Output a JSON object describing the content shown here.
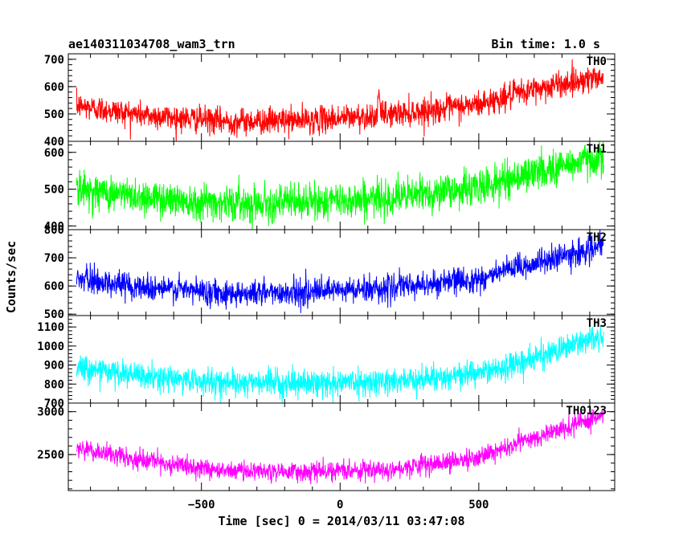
{
  "header": {
    "left_title": "ae140311034708_wam3_trn",
    "right_title": "Bin time: 1.0 s"
  },
  "chart_data": {
    "type": "line",
    "title": "ae140311034708_wam3_trn",
    "subtitle": "Bin time: 1.0 s",
    "xlabel": "Time [sec] 0 = 2014/03/11 03:47:08",
    "ylabel": "Counts/sec",
    "xlim": [
      -980,
      990
    ],
    "x_ticks": [
      -500,
      0,
      500
    ],
    "x_tick_labels": [
      "−500",
      "0",
      "500"
    ],
    "x_start": -950,
    "x_end": 950,
    "x_step": 1,
    "panels": [
      {
        "label": "TH0",
        "color": "#ff0000",
        "ylim": [
          400,
          720
        ],
        "y_ticks": [
          400,
          500,
          600,
          700
        ],
        "trend": [
          [
            -950,
            530
          ],
          [
            -700,
            495
          ],
          [
            -400,
            472
          ],
          [
            -100,
            478
          ],
          [
            130,
            495
          ],
          [
            300,
            510
          ],
          [
            500,
            535
          ],
          [
            700,
            590
          ],
          [
            950,
            640
          ]
        ],
        "noise_sd": 24,
        "spikes": [
          [
            140,
            590
          ]
        ]
      },
      {
        "label": "TH1",
        "color": "#00ff00",
        "ylim": [
          390,
          630
        ],
        "y_ticks": [
          400,
          500,
          600
        ],
        "trend": [
          [
            -950,
            500
          ],
          [
            -700,
            478
          ],
          [
            -400,
            462
          ],
          [
            -100,
            465
          ],
          [
            200,
            478
          ],
          [
            500,
            505
          ],
          [
            700,
            545
          ],
          [
            950,
            590
          ]
        ],
        "noise_sd": 24,
        "spikes": []
      },
      {
        "label": "TH2",
        "color": "#0000ff",
        "ylim": [
          495,
          800
        ],
        "y_ticks": [
          500,
          600,
          700,
          800
        ],
        "trend": [
          [
            -950,
            625
          ],
          [
            -700,
            595
          ],
          [
            -400,
            575
          ],
          [
            -100,
            578
          ],
          [
            200,
            595
          ],
          [
            500,
            625
          ],
          [
            700,
            680
          ],
          [
            950,
            740
          ]
        ],
        "noise_sd": 23,
        "spikes": []
      },
      {
        "label": "TH3",
        "color": "#00ffff",
        "ylim": [
          700,
          1160
        ],
        "y_ticks": [
          700,
          800,
          900,
          1000,
          1100
        ],
        "trend": [
          [
            -950,
            890
          ],
          [
            -700,
            835
          ],
          [
            -400,
            808
          ],
          [
            -100,
            805
          ],
          [
            200,
            815
          ],
          [
            500,
            855
          ],
          [
            700,
            935
          ],
          [
            950,
            1060
          ]
        ],
        "noise_sd": 33,
        "spikes": []
      },
      {
        "label": "TH0123",
        "color": "#ff00ff",
        "ylim": [
          2080,
          3100
        ],
        "y_ticks": [
          2500,
          3000
        ],
        "trend": [
          [
            -950,
            2570
          ],
          [
            -700,
            2420
          ],
          [
            -400,
            2310
          ],
          [
            -100,
            2300
          ],
          [
            200,
            2340
          ],
          [
            500,
            2460
          ],
          [
            700,
            2700
          ],
          [
            950,
            2950
          ]
        ],
        "noise_sd": 55,
        "spikes": []
      }
    ]
  }
}
